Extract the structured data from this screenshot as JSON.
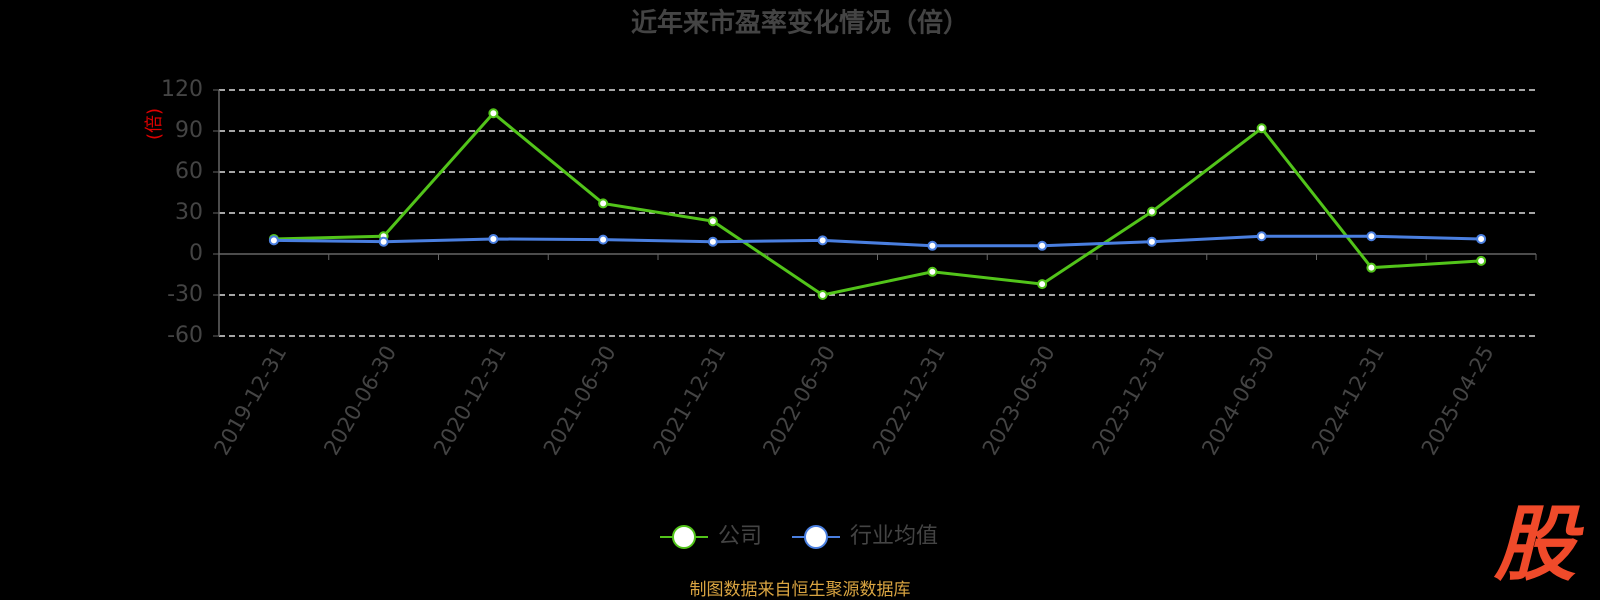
{
  "chart_data": {
    "type": "line",
    "title": "近年来市盈率变化情况（倍）",
    "y_label": "(倍)",
    "categories": [
      "2019-12-31",
      "2020-06-30",
      "2020-12-31",
      "2021-06-30",
      "2021-12-31",
      "2022-06-30",
      "2022-12-31",
      "2023-06-30",
      "2023-12-31",
      "2024-06-30",
      "2024-12-31",
      "2025-04-25"
    ],
    "series": [
      {
        "name": "公司",
        "color": "#52c41a",
        "values": [
          11,
          13,
          103,
          37,
          24,
          -30,
          -13,
          -22,
          31,
          92,
          -10,
          -5
        ]
      },
      {
        "name": "行业均值",
        "color": "#4a7fe0",
        "values": [
          10,
          9,
          11,
          10.5,
          9,
          10,
          6,
          6,
          9,
          13,
          13,
          11
        ]
      }
    ],
    "ylim": [
      -60,
      120
    ],
    "yticks": [
      -60,
      -30,
      0,
      30,
      60,
      90,
      120
    ],
    "grid": true,
    "source": "制图数据来自恒生聚源数据库",
    "logo": "股"
  }
}
